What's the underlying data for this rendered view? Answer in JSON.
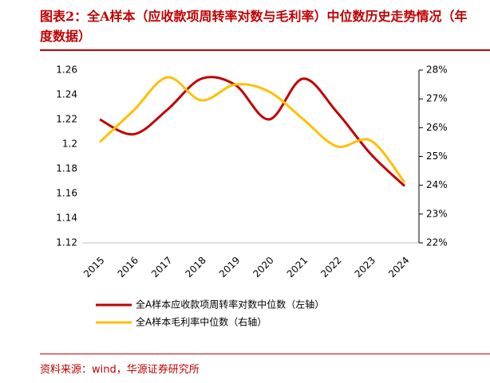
{
  "chart_data": {
    "type": "line",
    "title": "图表2：全A样本（应收款项周转率对数与毛利率）中位数历史走势情况（年度数据）",
    "source": "资料来源：wind，华源证券研究所",
    "categories": [
      "2015",
      "2016",
      "2017",
      "2018",
      "2019",
      "2020",
      "2021",
      "2022",
      "2023",
      "2024"
    ],
    "series": [
      {
        "name": "全A样本应收款项周转率对数中位数（左轴）",
        "color": "#c00000",
        "axis": "y",
        "values": [
          1.22,
          1.208,
          1.228,
          1.253,
          1.248,
          1.22,
          1.253,
          1.226,
          1.192,
          1.166
        ]
      },
      {
        "name": "全A样本毛利率中位数（右轴）",
        "color": "#ffc000",
        "axis": "y2",
        "values": [
          25.5,
          26.6,
          27.75,
          26.95,
          27.5,
          27.25,
          26.3,
          25.35,
          25.55,
          24.1
        ]
      }
    ],
    "ylim": [
      1.12,
      1.26
    ],
    "yticks": [
      1.12,
      1.14,
      1.16,
      1.18,
      1.2,
      1.22,
      1.24,
      1.26
    ],
    "y2lim": [
      22,
      28
    ],
    "y2ticks": [
      {
        "value": 22,
        "label": "22%"
      },
      {
        "value": 23,
        "label": "23%"
      },
      {
        "value": 24,
        "label": "24%"
      },
      {
        "value": 25,
        "label": "25%"
      },
      {
        "value": 26,
        "label": "26%"
      },
      {
        "value": 27,
        "label": "27%"
      },
      {
        "value": 28,
        "label": "28%"
      }
    ]
  }
}
